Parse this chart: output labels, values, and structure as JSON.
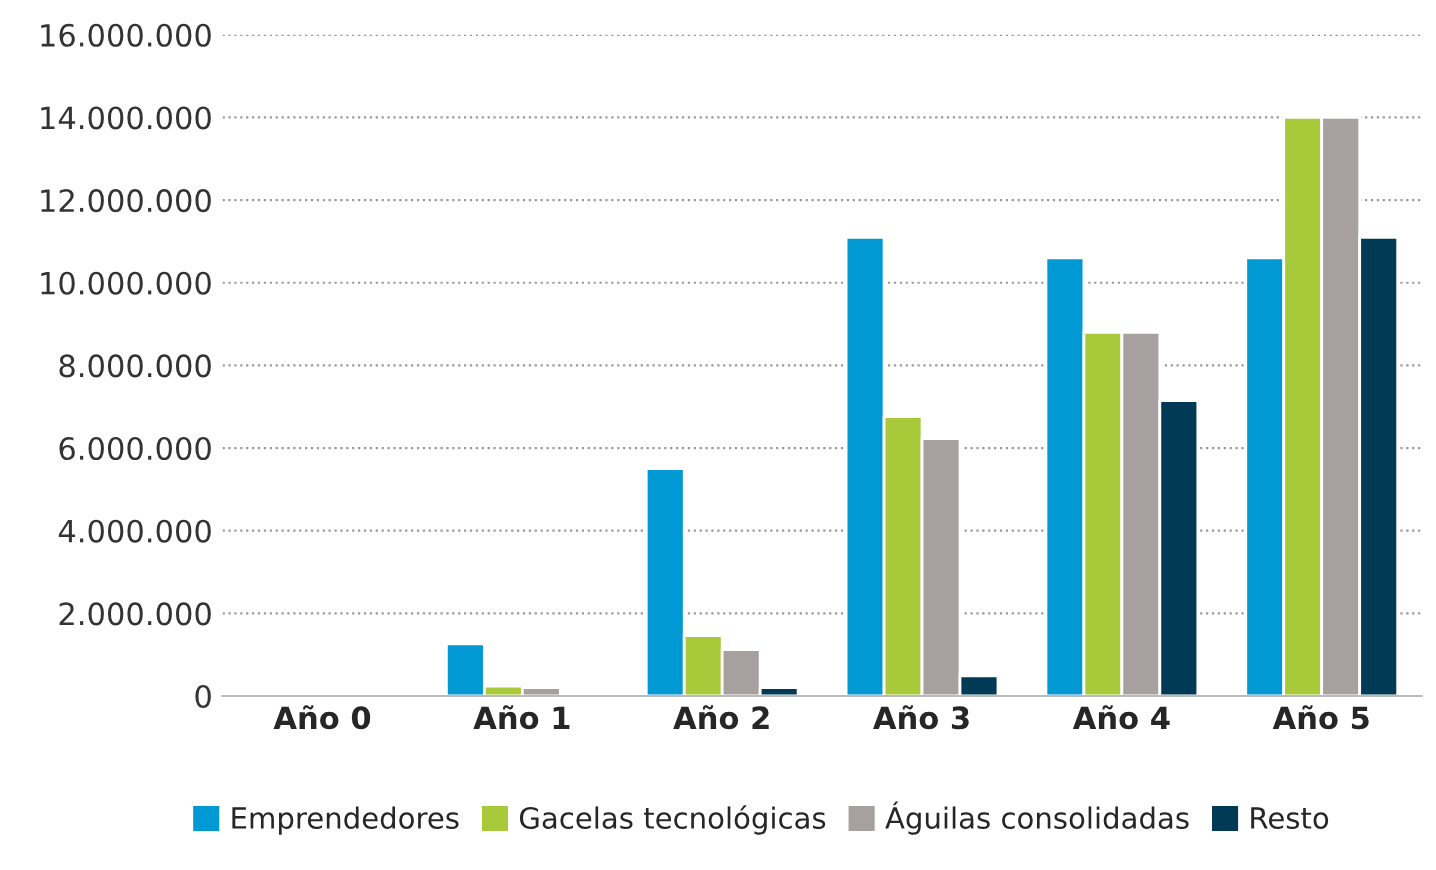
{
  "chart_data": {
    "type": "bar",
    "categories": [
      "Año 0",
      "Año 1",
      "Año 2",
      "Año 3",
      "Año 4",
      "Año 5"
    ],
    "series": [
      {
        "name": "Emprendedores",
        "color": "#0099d4",
        "values": [
          null,
          1260000,
          5500000,
          11100000,
          10600000,
          10600000
        ]
      },
      {
        "name": "Gacelas tecnológicas",
        "color": "#a8c93a",
        "values": [
          null,
          240000,
          1460000,
          6760000,
          8800000,
          14000000
        ]
      },
      {
        "name": "Águilas consolidadas",
        "color": "#a6a19e",
        "values": [
          null,
          200000,
          1120000,
          6230000,
          8800000,
          14000000
        ]
      },
      {
        "name": "Resto",
        "color": "#003a54",
        "values": [
          null,
          null,
          200000,
          490000,
          7150000,
          11100000
        ]
      }
    ],
    "ylim": [
      0,
      16000000
    ],
    "yticks": [
      {
        "value": 0,
        "label": "0"
      },
      {
        "value": 2000000,
        "label": "2.000.000"
      },
      {
        "value": 4000000,
        "label": "4.000.000"
      },
      {
        "value": 6000000,
        "label": "6.000.000"
      },
      {
        "value": 8000000,
        "label": "8.000.000"
      },
      {
        "value": 10000000,
        "label": "10.000.000"
      },
      {
        "value": 12000000,
        "label": "12.000.000"
      },
      {
        "value": 14000000,
        "label": "14.000.000"
      },
      {
        "value": 16000000,
        "label": "16.000.000"
      }
    ],
    "grid": "y",
    "legend": "bottom"
  }
}
